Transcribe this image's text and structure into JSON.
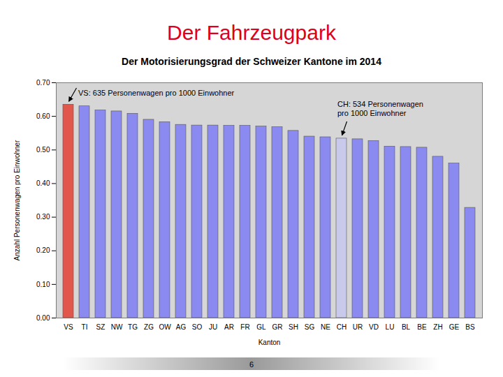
{
  "chart_data": {
    "type": "bar",
    "page_title": "Der Fahrzeugpark",
    "title": "Der Motorisierungsgrad der Schweizer Kantone im 2014",
    "x_label": "Kanton",
    "y_label": "Anzahl Personenwagen pro Einwohner",
    "categories": [
      "VS",
      "TI",
      "SZ",
      "NW",
      "TG",
      "ZG",
      "OW",
      "AG",
      "SO",
      "JU",
      "AR",
      "FR",
      "GL",
      "GR",
      "SH",
      "SG",
      "NE",
      "CH",
      "UR",
      "VD",
      "LU",
      "BL",
      "BE",
      "ZH",
      "GE",
      "BS"
    ],
    "values": [
      0.635,
      0.63,
      0.618,
      0.615,
      0.608,
      0.59,
      0.583,
      0.575,
      0.573,
      0.573,
      0.572,
      0.572,
      0.57,
      0.568,
      0.557,
      0.54,
      0.538,
      0.534,
      0.532,
      0.527,
      0.51,
      0.509,
      0.507,
      0.48,
      0.46,
      0.328
    ],
    "colors": [
      "#e2574c",
      "#8a8af0",
      "#8a8af0",
      "#8a8af0",
      "#8a8af0",
      "#8a8af0",
      "#8a8af0",
      "#8a8af0",
      "#8a8af0",
      "#8a8af0",
      "#8a8af0",
      "#8a8af0",
      "#8a8af0",
      "#8a8af0",
      "#8a8af0",
      "#8a8af0",
      "#8a8af0",
      "#c9c9ec",
      "#8a8af0",
      "#8a8af0",
      "#8a8af0",
      "#8a8af0",
      "#8a8af0",
      "#8a8af0",
      "#8a8af0",
      "#8a8af0"
    ],
    "ylim": [
      0,
      0.7
    ],
    "yticks": [
      {
        "value": 0,
        "label": "0.00"
      },
      {
        "value": 0.1,
        "label": "0.10"
      },
      {
        "value": 0.2,
        "label": "0.20"
      },
      {
        "value": 0.3,
        "label": "0.30"
      },
      {
        "value": 0.4,
        "label": "0.40"
      },
      {
        "value": 0.5,
        "label": "0.50"
      },
      {
        "value": 0.6,
        "label": "0.60"
      },
      {
        "value": 0.7,
        "label": "0.70"
      }
    ],
    "grid": true,
    "annotations": [
      {
        "text": "VS: 635 Personenwagen pro 1000 Einwohner",
        "category": "VS"
      },
      {
        "text": "CH: 534 Personenwagen\npro 1000 Einwohner",
        "category": "CH"
      }
    ],
    "page_number": "6"
  }
}
